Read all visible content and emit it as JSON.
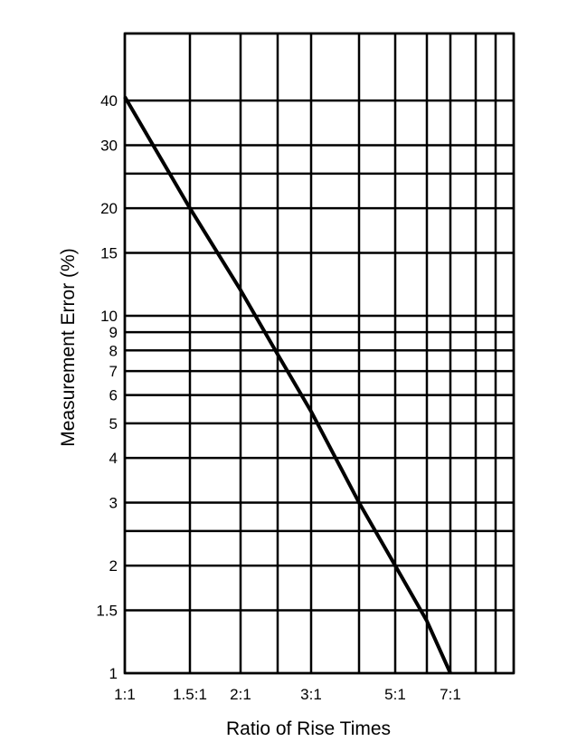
{
  "chart_data": {
    "type": "line",
    "title": "",
    "xlabel": "Ratio of Rise Times",
    "ylabel": "Measurement Error (%)",
    "x_scale": "log",
    "y_scale": "log",
    "xlim": [
      1,
      10
    ],
    "ylim": [
      1,
      70
    ],
    "grid": true,
    "x_ticks": [
      {
        "value": 1,
        "label": "1:1"
      },
      {
        "value": 1.5,
        "label": "1.5:1"
      },
      {
        "value": 2,
        "label": "2:1"
      },
      {
        "value": 3,
        "label": "3:1"
      },
      {
        "value": 5,
        "label": "5:1"
      },
      {
        "value": 7,
        "label": "7:1"
      }
    ],
    "x_gridlines": [
      1,
      1.5,
      2,
      2.5,
      3,
      4,
      5,
      6,
      7,
      8,
      9,
      10
    ],
    "y_ticks": [
      {
        "value": 1,
        "label": "1"
      },
      {
        "value": 1.5,
        "label": "1.5"
      },
      {
        "value": 2,
        "label": "2"
      },
      {
        "value": 3,
        "label": "3"
      },
      {
        "value": 4,
        "label": "4"
      },
      {
        "value": 5,
        "label": "5"
      },
      {
        "value": 6,
        "label": "6"
      },
      {
        "value": 7,
        "label": "7"
      },
      {
        "value": 8,
        "label": "8"
      },
      {
        "value": 9,
        "label": "9"
      },
      {
        "value": 10,
        "label": "10"
      },
      {
        "value": 15,
        "label": "15"
      },
      {
        "value": 20,
        "label": "20"
      },
      {
        "value": 30,
        "label": "30"
      },
      {
        "value": 40,
        "label": "40"
      }
    ],
    "y_gridlines": [
      1,
      1.5,
      2,
      2.5,
      3,
      4,
      5,
      6,
      7,
      8,
      9,
      10,
      15,
      20,
      25,
      30,
      40,
      70
    ],
    "series": [
      {
        "x": [
          1,
          1.5,
          2,
          2.5,
          3,
          4,
          5,
          6,
          7
        ],
        "y": [
          41,
          20,
          11.8,
          7.8,
          5.4,
          3.0,
          2.0,
          1.4,
          1.0
        ]
      }
    ]
  }
}
